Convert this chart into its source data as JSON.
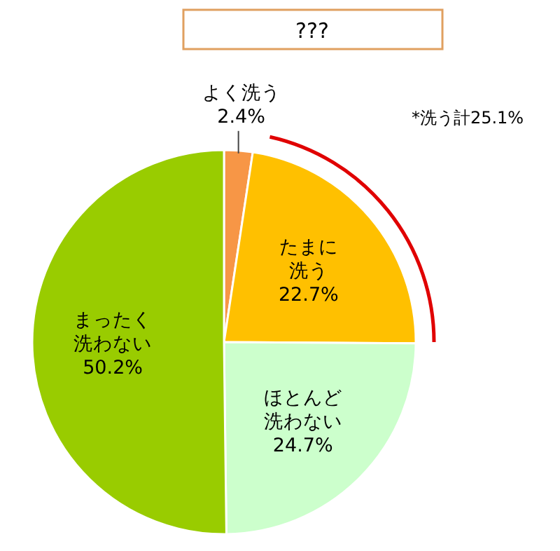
{
  "chart_data": {
    "type": "pie",
    "title": "???",
    "categories": [
      "よく洗う",
      "たまに洗う",
      "ほとんど洗わない",
      "まったく洗わない"
    ],
    "values": [
      2.4,
      22.7,
      24.7,
      50.2
    ],
    "value_labels": [
      "2.4%",
      "22.7%",
      "24.7%",
      "50.2%"
    ],
    "colors": [
      "#f79646",
      "#ffc000",
      "#ccffcc",
      "#99cc00"
    ],
    "annotations": [
      "*洗う計25.1%"
    ]
  }
}
